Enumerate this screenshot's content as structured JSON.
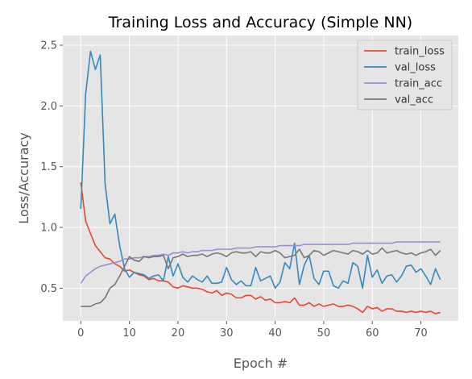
{
  "chart_data": {
    "type": "line",
    "title": "Training Loss and Accuracy (Simple NN)",
    "xlabel": "Epoch #",
    "ylabel": "Loss/Accuracy",
    "xlim": [
      -3.7,
      77.7
    ],
    "ylim": [
      0.23,
      2.58
    ],
    "xticks": [
      0,
      10,
      20,
      30,
      40,
      50,
      60,
      70
    ],
    "yticks": [
      0.5,
      1.0,
      1.5,
      2.0,
      2.5
    ],
    "ytick_labels": [
      "0.5",
      "1.0",
      "1.5",
      "2.0",
      "2.5"
    ],
    "grid": true,
    "legend_position": "top-right",
    "series": [
      {
        "name": "train_loss",
        "color": "#E24A33",
        "x": [
          0,
          1,
          2,
          3,
          4,
          5,
          6,
          7,
          8,
          9,
          10,
          11,
          12,
          13,
          14,
          15,
          16,
          17,
          18,
          19,
          20,
          21,
          22,
          23,
          24,
          25,
          26,
          27,
          28,
          29,
          30,
          31,
          32,
          33,
          34,
          35,
          36,
          37,
          38,
          39,
          40,
          41,
          42,
          43,
          44,
          45,
          46,
          47,
          48,
          49,
          50,
          51,
          52,
          53,
          54,
          55,
          56,
          57,
          58,
          59,
          60,
          61,
          62,
          63,
          64,
          65,
          66,
          67,
          68,
          69,
          70,
          71,
          72,
          73,
          74
        ],
        "values": [
          1.37,
          1.05,
          0.95,
          0.85,
          0.8,
          0.75,
          0.74,
          0.7,
          0.68,
          0.64,
          0.65,
          0.63,
          0.61,
          0.6,
          0.57,
          0.58,
          0.56,
          0.56,
          0.55,
          0.51,
          0.5,
          0.52,
          0.51,
          0.5,
          0.5,
          0.49,
          0.47,
          0.46,
          0.48,
          0.44,
          0.46,
          0.45,
          0.42,
          0.42,
          0.44,
          0.44,
          0.41,
          0.43,
          0.4,
          0.41,
          0.38,
          0.38,
          0.39,
          0.38,
          0.42,
          0.36,
          0.36,
          0.38,
          0.35,
          0.37,
          0.35,
          0.36,
          0.37,
          0.35,
          0.35,
          0.36,
          0.35,
          0.33,
          0.3,
          0.35,
          0.33,
          0.34,
          0.31,
          0.33,
          0.33,
          0.31,
          0.31,
          0.3,
          0.31,
          0.3,
          0.31,
          0.3,
          0.31,
          0.29,
          0.3
        ]
      },
      {
        "name": "val_loss",
        "color": "#348ABD",
        "x": [
          0,
          1,
          2,
          3,
          4,
          5,
          6,
          7,
          8,
          9,
          10,
          11,
          12,
          13,
          14,
          15,
          16,
          17,
          18,
          19,
          20,
          21,
          22,
          23,
          24,
          25,
          26,
          27,
          28,
          29,
          30,
          31,
          32,
          33,
          34,
          35,
          36,
          37,
          38,
          39,
          40,
          41,
          42,
          43,
          44,
          45,
          46,
          47,
          48,
          49,
          50,
          51,
          52,
          53,
          54,
          55,
          56,
          57,
          58,
          59,
          60,
          61,
          62,
          63,
          64,
          65,
          66,
          67,
          68,
          69,
          70,
          71,
          72,
          73,
          74
        ],
        "values": [
          1.15,
          2.1,
          2.45,
          2.3,
          2.42,
          1.36,
          1.03,
          1.11,
          0.85,
          0.66,
          0.59,
          0.63,
          0.62,
          0.61,
          0.58,
          0.6,
          0.61,
          0.56,
          0.76,
          0.6,
          0.7,
          0.59,
          0.55,
          0.6,
          0.57,
          0.55,
          0.6,
          0.54,
          0.54,
          0.55,
          0.67,
          0.57,
          0.53,
          0.56,
          0.52,
          0.52,
          0.67,
          0.56,
          0.58,
          0.6,
          0.5,
          0.55,
          0.71,
          0.66,
          0.87,
          0.53,
          0.69,
          0.77,
          0.58,
          0.53,
          0.64,
          0.64,
          0.52,
          0.5,
          0.56,
          0.54,
          0.71,
          0.68,
          0.5,
          0.77,
          0.59,
          0.65,
          0.54,
          0.6,
          0.61,
          0.55,
          0.6,
          0.68,
          0.69,
          0.63,
          0.66,
          0.6,
          0.53,
          0.66,
          0.57
        ]
      },
      {
        "name": "train_acc",
        "color": "#988ED5",
        "x": [
          0,
          1,
          2,
          3,
          4,
          5,
          6,
          7,
          8,
          9,
          10,
          11,
          12,
          13,
          14,
          15,
          16,
          17,
          18,
          19,
          20,
          21,
          22,
          23,
          24,
          25,
          26,
          27,
          28,
          29,
          30,
          31,
          32,
          33,
          34,
          35,
          36,
          37,
          38,
          39,
          40,
          41,
          42,
          43,
          44,
          45,
          46,
          47,
          48,
          49,
          50,
          51,
          52,
          53,
          54,
          55,
          56,
          57,
          58,
          59,
          60,
          61,
          62,
          63,
          64,
          65,
          66,
          67,
          68,
          69,
          70,
          71,
          72,
          73,
          74
        ],
        "values": [
          0.54,
          0.6,
          0.63,
          0.66,
          0.68,
          0.69,
          0.7,
          0.71,
          0.72,
          0.74,
          0.74,
          0.75,
          0.75,
          0.76,
          0.76,
          0.77,
          0.77,
          0.78,
          0.77,
          0.79,
          0.79,
          0.8,
          0.79,
          0.8,
          0.8,
          0.81,
          0.81,
          0.81,
          0.82,
          0.82,
          0.82,
          0.82,
          0.83,
          0.83,
          0.83,
          0.83,
          0.84,
          0.84,
          0.84,
          0.84,
          0.84,
          0.85,
          0.85,
          0.85,
          0.85,
          0.85,
          0.86,
          0.86,
          0.86,
          0.86,
          0.86,
          0.86,
          0.86,
          0.86,
          0.86,
          0.86,
          0.87,
          0.87,
          0.87,
          0.87,
          0.87,
          0.87,
          0.87,
          0.87,
          0.87,
          0.88,
          0.88,
          0.88,
          0.88,
          0.88,
          0.88,
          0.88,
          0.88,
          0.88,
          0.88
        ]
      },
      {
        "name": "val_acc",
        "color": "#777777",
        "x": [
          0,
          1,
          2,
          3,
          4,
          5,
          6,
          7,
          8,
          9,
          10,
          11,
          12,
          13,
          14,
          15,
          16,
          17,
          18,
          19,
          20,
          21,
          22,
          23,
          24,
          25,
          26,
          27,
          28,
          29,
          30,
          31,
          32,
          33,
          34,
          35,
          36,
          37,
          38,
          39,
          40,
          41,
          42,
          43,
          44,
          45,
          46,
          47,
          48,
          49,
          50,
          51,
          52,
          53,
          54,
          55,
          56,
          57,
          58,
          59,
          60,
          61,
          62,
          63,
          64,
          65,
          66,
          67,
          68,
          69,
          70,
          71,
          72,
          73,
          74
        ],
        "values": [
          0.35,
          0.35,
          0.35,
          0.37,
          0.38,
          0.42,
          0.5,
          0.53,
          0.6,
          0.68,
          0.76,
          0.73,
          0.72,
          0.76,
          0.75,
          0.76,
          0.76,
          0.77,
          0.66,
          0.75,
          0.76,
          0.78,
          0.76,
          0.77,
          0.77,
          0.78,
          0.76,
          0.78,
          0.79,
          0.78,
          0.76,
          0.79,
          0.8,
          0.79,
          0.79,
          0.8,
          0.76,
          0.8,
          0.79,
          0.79,
          0.81,
          0.79,
          0.75,
          0.76,
          0.77,
          0.82,
          0.75,
          0.77,
          0.81,
          0.8,
          0.77,
          0.79,
          0.81,
          0.8,
          0.79,
          0.78,
          0.81,
          0.8,
          0.78,
          0.81,
          0.78,
          0.79,
          0.83,
          0.79,
          0.8,
          0.81,
          0.79,
          0.78,
          0.79,
          0.77,
          0.79,
          0.8,
          0.82,
          0.77,
          0.81
        ]
      }
    ]
  }
}
